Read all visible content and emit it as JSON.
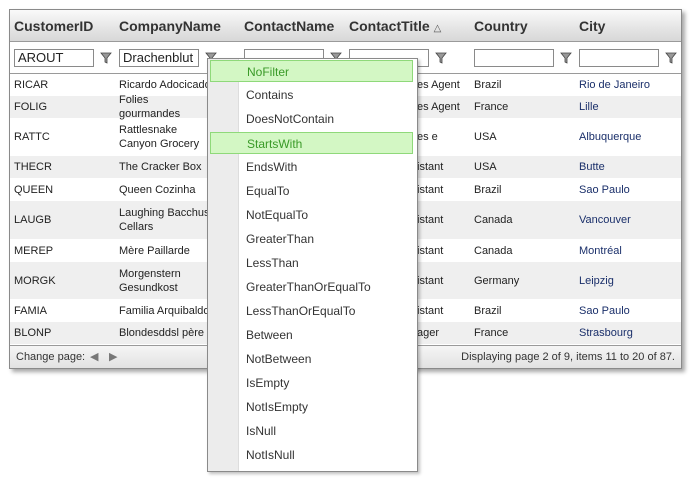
{
  "columns": [
    {
      "label": "CustomerID",
      "filter": "AROUT"
    },
    {
      "label": "CompanyName",
      "filter": "Drachenblut"
    },
    {
      "label": "ContactName",
      "filter": ""
    },
    {
      "label": "ContactTitle",
      "filter": "",
      "sort": "ascending"
    },
    {
      "label": "Country",
      "filter": ""
    },
    {
      "label": "City",
      "filter": ""
    }
  ],
  "rows": [
    {
      "id": "RICAR",
      "company": "Ricardo Adocicado",
      "title": "es Agent",
      "country": "Brazil",
      "city": "Rio de Janeiro"
    },
    {
      "id": "FOLIG",
      "company": "Folies gourmandes",
      "title": "es Agent",
      "country": "France",
      "city": "Lille"
    },
    {
      "id": "RATTC",
      "company": "Rattlesnake Canyon Grocery",
      "title": "es e",
      "country": "USA",
      "city": "Albuquerque"
    },
    {
      "id": "THECR",
      "company": "The Cracker Box",
      "title": "istant",
      "country": "USA",
      "city": "Butte"
    },
    {
      "id": "QUEEN",
      "company": "Queen Cozinha",
      "title": "istant",
      "country": "Brazil",
      "city": "Sao Paulo"
    },
    {
      "id": "LAUGB",
      "company": "Laughing Bacchus Cellars",
      "title": "istant",
      "country": "Canada",
      "city": "Vancouver"
    },
    {
      "id": "MEREP",
      "company": "Mère Paillarde",
      "title": "istant",
      "country": "Canada",
      "city": "Montréal"
    },
    {
      "id": "MORGK",
      "company": "Morgenstern Gesundkost",
      "title": "istant",
      "country": "Germany",
      "city": "Leipzig"
    },
    {
      "id": "FAMIA",
      "company": "Familia Arquibaldo",
      "title": "istant",
      "country": "Brazil",
      "city": "Sao Paulo"
    },
    {
      "id": "BLONP",
      "company": "Blondesddsl père",
      "title": "ager",
      "country": "France",
      "city": "Strasbourg"
    }
  ],
  "footer": {
    "change_page": "Change page:",
    "status": "Displaying page 2 of 9, items 11 to 20 of 87."
  },
  "filter_menu": {
    "items": [
      "NoFilter",
      "Contains",
      "DoesNotContain",
      "StartsWith",
      "EndsWith",
      "EqualTo",
      "NotEqualTo",
      "GreaterThan",
      "LessThan",
      "GreaterThanOrEqualTo",
      "LessThanOrEqualTo",
      "Between",
      "NotBetween",
      "IsEmpty",
      "NotIsEmpty",
      "IsNull",
      "NotIsNull"
    ],
    "highlighted": [
      "NoFilter",
      "StartsWith"
    ]
  },
  "colors": {
    "highlight": "#d3f7c4",
    "highlight_border": "#8fd97a",
    "alt_row": "#efefef"
  }
}
